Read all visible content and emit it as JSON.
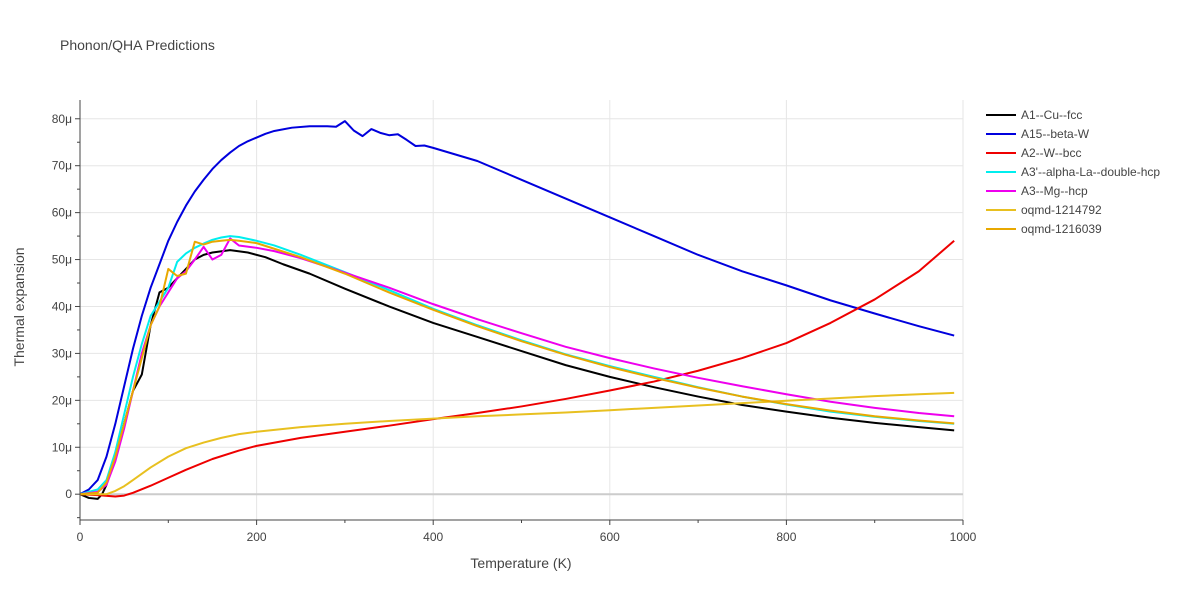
{
  "chart_data": {
    "type": "line",
    "title": "Phonon/QHA Predictions",
    "xlabel": "Temperature (K)",
    "ylabel": "Thermal expansion",
    "xlim": [
      0,
      1000
    ],
    "ylim": [
      -5.5,
      84
    ],
    "x_ticks": [
      0,
      200,
      400,
      600,
      800,
      1000
    ],
    "x_tick_labels": [
      "0",
      "200",
      "400",
      "600",
      "800",
      "1000"
    ],
    "y_ticks": [
      0,
      10,
      20,
      30,
      40,
      50,
      60,
      70,
      80
    ],
    "y_tick_labels": [
      "0",
      "10μ",
      "20μ",
      "30μ",
      "40μ",
      "50μ",
      "60μ",
      "70μ",
      "80μ"
    ],
    "y_unit": "μ",
    "grid": true,
    "legend_position": "right",
    "series": [
      {
        "name": "A1--Cu--fcc",
        "color": "#000000",
        "points": [
          [
            0,
            0
          ],
          [
            10,
            -0.8
          ],
          [
            20,
            -1
          ],
          [
            25,
            0
          ],
          [
            30,
            2
          ],
          [
            40,
            8
          ],
          [
            50,
            15
          ],
          [
            60,
            22
          ],
          [
            70,
            25.5
          ],
          [
            80,
            36
          ],
          [
            90,
            43
          ],
          [
            100,
            44
          ],
          [
            110,
            46
          ],
          [
            120,
            48
          ],
          [
            130,
            50
          ],
          [
            140,
            51
          ],
          [
            150,
            51.5
          ],
          [
            170,
            52
          ],
          [
            190,
            51.5
          ],
          [
            210,
            50.5
          ],
          [
            230,
            49
          ],
          [
            260,
            47
          ],
          [
            300,
            43.8
          ],
          [
            350,
            40
          ],
          [
            400,
            36.5
          ],
          [
            450,
            33.5
          ],
          [
            500,
            30.5
          ],
          [
            550,
            27.5
          ],
          [
            600,
            25
          ],
          [
            650,
            22.8
          ],
          [
            700,
            20.8
          ],
          [
            750,
            19
          ],
          [
            800,
            17.6
          ],
          [
            850,
            16.3
          ],
          [
            900,
            15.2
          ],
          [
            950,
            14.3
          ],
          [
            990,
            13.6
          ]
        ]
      },
      {
        "name": "A15--beta-W",
        "color": "#0000dd",
        "points": [
          [
            0,
            0
          ],
          [
            10,
            1
          ],
          [
            20,
            3
          ],
          [
            30,
            8
          ],
          [
            40,
            15
          ],
          [
            50,
            23
          ],
          [
            60,
            31
          ],
          [
            70,
            38
          ],
          [
            80,
            44
          ],
          [
            90,
            49
          ],
          [
            100,
            54
          ],
          [
            110,
            58
          ],
          [
            120,
            61.5
          ],
          [
            130,
            64.5
          ],
          [
            140,
            67
          ],
          [
            150,
            69.3
          ],
          [
            160,
            71.2
          ],
          [
            170,
            72.8
          ],
          [
            180,
            74.2
          ],
          [
            190,
            75.2
          ],
          [
            200,
            76
          ],
          [
            210,
            76.8
          ],
          [
            220,
            77.4
          ],
          [
            240,
            78.1
          ],
          [
            260,
            78.4
          ],
          [
            280,
            78.4
          ],
          [
            290,
            78.3
          ],
          [
            300,
            79.5
          ],
          [
            310,
            77.5
          ],
          [
            320,
            76.3
          ],
          [
            330,
            77.8
          ],
          [
            340,
            77
          ],
          [
            350,
            76.5
          ],
          [
            360,
            76.7
          ],
          [
            370,
            75.5
          ],
          [
            380,
            74.2
          ],
          [
            390,
            74.3
          ],
          [
            400,
            73.8
          ],
          [
            450,
            71
          ],
          [
            500,
            67
          ],
          [
            550,
            63
          ],
          [
            600,
            59
          ],
          [
            650,
            55
          ],
          [
            700,
            51
          ],
          [
            750,
            47.5
          ],
          [
            800,
            44.5
          ],
          [
            850,
            41.3
          ],
          [
            900,
            38.5
          ],
          [
            950,
            35.8
          ],
          [
            990,
            33.8
          ]
        ]
      },
      {
        "name": "A2--W--bcc",
        "color": "#ee0000",
        "points": [
          [
            0,
            0
          ],
          [
            20,
            -0.2
          ],
          [
            40,
            -0.5
          ],
          [
            50,
            -0.3
          ],
          [
            60,
            0.3
          ],
          [
            80,
            1.8
          ],
          [
            100,
            3.5
          ],
          [
            120,
            5.2
          ],
          [
            150,
            7.5
          ],
          [
            180,
            9.3
          ],
          [
            200,
            10.3
          ],
          [
            250,
            12
          ],
          [
            300,
            13.3
          ],
          [
            350,
            14.6
          ],
          [
            400,
            16
          ],
          [
            450,
            17.3
          ],
          [
            500,
            18.7
          ],
          [
            550,
            20.3
          ],
          [
            600,
            22.1
          ],
          [
            650,
            24
          ],
          [
            700,
            26.3
          ],
          [
            750,
            29
          ],
          [
            800,
            32.2
          ],
          [
            850,
            36.5
          ],
          [
            900,
            41.5
          ],
          [
            950,
            47.5
          ],
          [
            990,
            54
          ]
        ]
      },
      {
        "name": "A3'--alpha-La--double-hcp",
        "color": "#00eeee",
        "points": [
          [
            0,
            0
          ],
          [
            20,
            1
          ],
          [
            30,
            3
          ],
          [
            40,
            9
          ],
          [
            50,
            17
          ],
          [
            60,
            25
          ],
          [
            70,
            32
          ],
          [
            80,
            38
          ],
          [
            90,
            41
          ],
          [
            100,
            44
          ],
          [
            110,
            49.5
          ],
          [
            120,
            51.3
          ],
          [
            130,
            52.5
          ],
          [
            140,
            53.4
          ],
          [
            150,
            54.2
          ],
          [
            160,
            54.7
          ],
          [
            170,
            55
          ],
          [
            180,
            54.8
          ],
          [
            200,
            54
          ],
          [
            220,
            53
          ],
          [
            250,
            51
          ],
          [
            300,
            47.3
          ],
          [
            350,
            43.5
          ],
          [
            400,
            39.5
          ],
          [
            450,
            36
          ],
          [
            500,
            32.8
          ],
          [
            550,
            29.8
          ],
          [
            600,
            27.3
          ],
          [
            650,
            25
          ],
          [
            700,
            22.8
          ],
          [
            750,
            20.8
          ],
          [
            800,
            19.1
          ],
          [
            850,
            17.6
          ],
          [
            900,
            16.5
          ],
          [
            950,
            15.6
          ],
          [
            990,
            15
          ]
        ]
      },
      {
        "name": "A3--Mg--hcp",
        "color": "#ee00ee",
        "points": [
          [
            0,
            0
          ],
          [
            20,
            0.5
          ],
          [
            30,
            2
          ],
          [
            40,
            7
          ],
          [
            50,
            14
          ],
          [
            60,
            22
          ],
          [
            70,
            30
          ],
          [
            80,
            36
          ],
          [
            90,
            40
          ],
          [
            100,
            43
          ],
          [
            110,
            46
          ],
          [
            120,
            47.5
          ],
          [
            130,
            50
          ],
          [
            140,
            52.7
          ],
          [
            150,
            50
          ],
          [
            160,
            51
          ],
          [
            170,
            54.5
          ],
          [
            180,
            53
          ],
          [
            200,
            52.5
          ],
          [
            220,
            51.8
          ],
          [
            250,
            50.3
          ],
          [
            300,
            47.2
          ],
          [
            350,
            44
          ],
          [
            400,
            40.5
          ],
          [
            450,
            37.3
          ],
          [
            500,
            34.3
          ],
          [
            550,
            31.4
          ],
          [
            600,
            29
          ],
          [
            650,
            26.8
          ],
          [
            700,
            24.8
          ],
          [
            750,
            23
          ],
          [
            800,
            21.3
          ],
          [
            850,
            19.7
          ],
          [
            900,
            18.4
          ],
          [
            950,
            17.3
          ],
          [
            990,
            16.6
          ]
        ]
      },
      {
        "name": "oqmd-1214792",
        "color": "#e8c020",
        "points": [
          [
            0,
            0
          ],
          [
            20,
            0
          ],
          [
            30,
            0
          ],
          [
            40,
            0.7
          ],
          [
            50,
            1.7
          ],
          [
            60,
            3
          ],
          [
            80,
            5.7
          ],
          [
            100,
            8
          ],
          [
            120,
            9.8
          ],
          [
            140,
            11
          ],
          [
            160,
            12
          ],
          [
            180,
            12.8
          ],
          [
            200,
            13.3
          ],
          [
            250,
            14.3
          ],
          [
            300,
            15
          ],
          [
            350,
            15.6
          ],
          [
            400,
            16.1
          ],
          [
            450,
            16.6
          ],
          [
            500,
            17
          ],
          [
            550,
            17.4
          ],
          [
            600,
            17.9
          ],
          [
            650,
            18.4
          ],
          [
            700,
            18.9
          ],
          [
            750,
            19.4
          ],
          [
            800,
            19.9
          ],
          [
            850,
            20.4
          ],
          [
            900,
            20.9
          ],
          [
            950,
            21.3
          ],
          [
            990,
            21.6
          ]
        ]
      },
      {
        "name": "oqmd-1216039",
        "color": "#e8a800",
        "points": [
          [
            0,
            0
          ],
          [
            20,
            0.3
          ],
          [
            30,
            2.5
          ],
          [
            40,
            8
          ],
          [
            50,
            15
          ],
          [
            60,
            22
          ],
          [
            70,
            29
          ],
          [
            80,
            36
          ],
          [
            90,
            40
          ],
          [
            100,
            48
          ],
          [
            110,
            46.5
          ],
          [
            120,
            47
          ],
          [
            130,
            53.8
          ],
          [
            140,
            53.2
          ],
          [
            150,
            53.8
          ],
          [
            160,
            54
          ],
          [
            170,
            54.2
          ],
          [
            180,
            54
          ],
          [
            200,
            53.5
          ],
          [
            220,
            52.3
          ],
          [
            250,
            50.5
          ],
          [
            300,
            47
          ],
          [
            350,
            43
          ],
          [
            400,
            39.3
          ],
          [
            450,
            35.8
          ],
          [
            500,
            32.6
          ],
          [
            550,
            29.7
          ],
          [
            600,
            27.1
          ],
          [
            650,
            24.8
          ],
          [
            700,
            22.7
          ],
          [
            750,
            20.8
          ],
          [
            800,
            19.2
          ],
          [
            850,
            17.8
          ],
          [
            900,
            16.6
          ],
          [
            950,
            15.7
          ],
          [
            990,
            15.1
          ]
        ]
      }
    ]
  }
}
